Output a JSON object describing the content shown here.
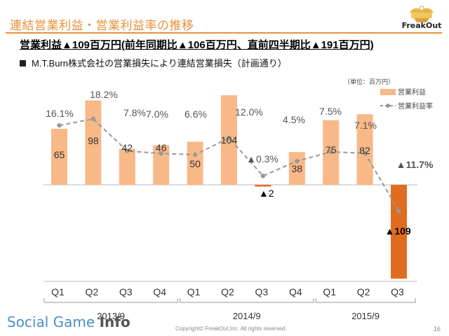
{
  "header": {
    "title": "連結営業利益・営業利益率の推移",
    "logo_text": "FreakOut"
  },
  "headline": "営業利益▲109百万円(前年同期比▲106百万円、直前四半期比▲191百万円)",
  "bullet": "M.T.Burn株式会社の営業損失により連結営業損失（計画通り）",
  "unit_note": "（単位：百万円）",
  "footer": {
    "site_logo": "Social Game",
    "site_logo_bold": "Info",
    "copyright": "Copyright© FreakOut,Inc. All rights reserved.",
    "page_number": "16"
  },
  "colors": {
    "bar": "#f9b887",
    "bar_negative": "#e06c1f",
    "line": "#999999",
    "accent": "#e8913a"
  },
  "chart_data": {
    "type": "bar",
    "categories": [
      "Q1",
      "Q2",
      "Q3",
      "Q4",
      "Q1",
      "Q2",
      "Q3",
      "Q4",
      "Q1",
      "Q2",
      "Q3"
    ],
    "groups": [
      {
        "label": "2013/9",
        "count": 4
      },
      {
        "label": "2014/9",
        "count": 4
      },
      {
        "label": "2015/9",
        "count": 3
      }
    ],
    "series": [
      {
        "name": "営業利益",
        "type": "bar",
        "values": [
          65,
          98,
          42,
          46,
          50,
          104,
          -2,
          38,
          75,
          82,
          -109
        ],
        "labels": [
          "65",
          "98",
          "42",
          "46",
          "50",
          "104",
          "▲2",
          "38",
          "75",
          "82",
          "▲109"
        ]
      },
      {
        "name": "営業利益率",
        "type": "line",
        "values": [
          16.1,
          18.2,
          7.8,
          7.0,
          6.6,
          12.0,
          -0.3,
          4.5,
          7.5,
          7.1,
          -11.7
        ],
        "labels": [
          "16.1%",
          "18.2%",
          "7.8%",
          "7.0%",
          "6.6%",
          "12.0%",
          "▲0.3%",
          "4.5%",
          "7.5%",
          "7.1%",
          "▲11.7%"
        ]
      }
    ],
    "legend_position": "top-right",
    "grid": false
  }
}
